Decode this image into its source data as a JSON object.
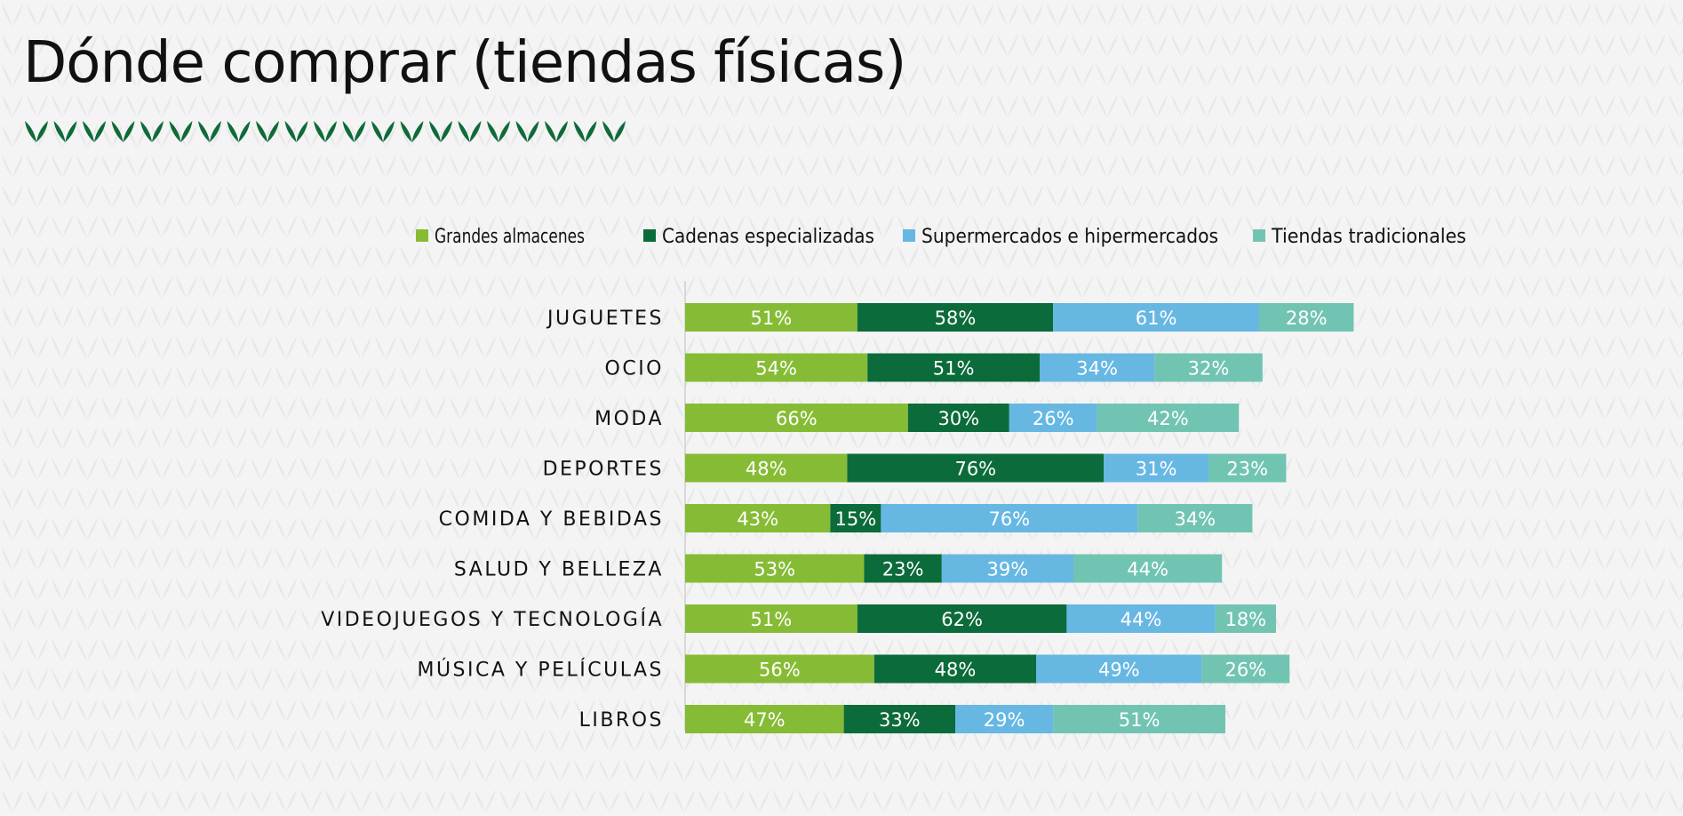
{
  "title": "Dónde comprar (tiendas físicas)",
  "colors": {
    "background": "#f4f4f4",
    "decoration": "#0f6a3a"
  },
  "chart_data": {
    "type": "bar",
    "orientation": "horizontal",
    "stacked": true,
    "title": "",
    "xlabel": "",
    "ylabel": "",
    "categories": [
      "JUGUETES",
      "OCIO",
      "MODA",
      "DEPORTES",
      "COMIDA Y BEBIDAS",
      "SALUD Y BELLEZA",
      "VIDEOJUEGOS Y TECNOLOGÍA",
      "MÚSICA Y PELÍCULAS",
      "LIBROS"
    ],
    "series": [
      {
        "name": "Grandes almacenes",
        "color": "#86bc35",
        "values": [
          51,
          54,
          66,
          48,
          43,
          53,
          51,
          56,
          47
        ]
      },
      {
        "name": "Cadenas especializadas",
        "color": "#0c6b3a",
        "values": [
          58,
          51,
          30,
          76,
          15,
          23,
          62,
          48,
          33
        ]
      },
      {
        "name": "Supermercados e hipermercados",
        "color": "#67b7e3",
        "values": [
          61,
          34,
          26,
          31,
          76,
          39,
          44,
          49,
          29
        ]
      },
      {
        "name": "Tiendas tradicionales",
        "color": "#72c4b2",
        "values": [
          28,
          32,
          42,
          23,
          34,
          44,
          18,
          26,
          51
        ]
      }
    ],
    "value_suffix": "%",
    "legend": "top",
    "grid": false,
    "data_labels": true
  }
}
